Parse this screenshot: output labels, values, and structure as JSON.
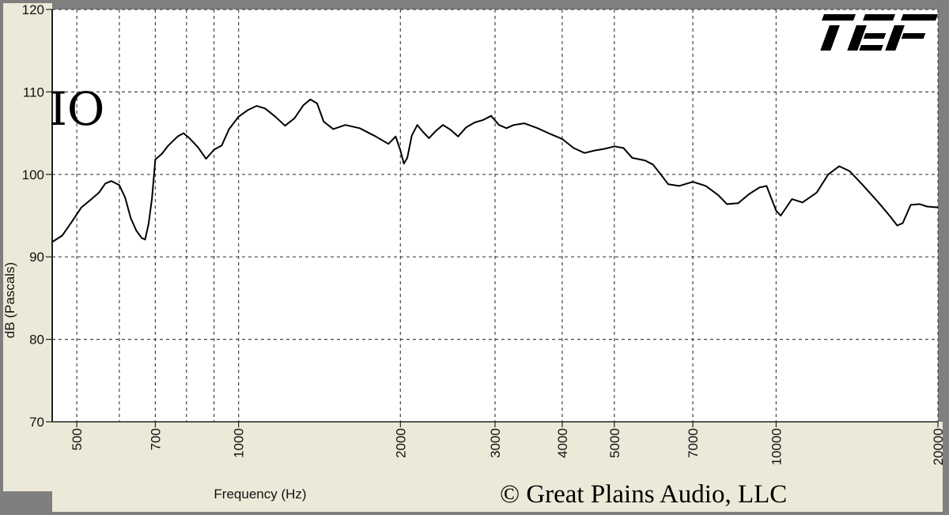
{
  "chart_data": {
    "type": "line",
    "title": "",
    "panel_label": "IO",
    "logo_text": "TEF",
    "copyright": "© Great Plains Audio, LLC",
    "xlabel": "Frequency (Hz)",
    "ylabel": "dB (Pascals)",
    "x_scale": "log",
    "xlim": [
      450,
      20000
    ],
    "ylim": [
      70,
      120
    ],
    "x_ticks": [
      500,
      700,
      1000,
      2000,
      3000,
      4000,
      5000,
      7000,
      10000,
      20000
    ],
    "x_minor_gridlines": [
      600,
      800,
      900
    ],
    "y_ticks": [
      70,
      80,
      90,
      100,
      110,
      120
    ],
    "grid": true,
    "colors": {
      "line": "#000000",
      "plot_bg": "#ffffff",
      "frame_bg": "#7f7f7f",
      "panel_bg": "#ece9d8",
      "grid": "#444444"
    },
    "series": [
      {
        "points": [
          [
            450,
            91.8
          ],
          [
            470,
            92.6
          ],
          [
            490,
            94.3
          ],
          [
            510,
            96.0
          ],
          [
            530,
            96.9
          ],
          [
            550,
            97.8
          ],
          [
            565,
            98.9
          ],
          [
            580,
            99.2
          ],
          [
            600,
            98.7
          ],
          [
            615,
            97.2
          ],
          [
            630,
            94.7
          ],
          [
            645,
            93.2
          ],
          [
            660,
            92.3
          ],
          [
            670,
            92.1
          ],
          [
            680,
            94.0
          ],
          [
            690,
            97.1
          ],
          [
            700,
            101.8
          ],
          [
            720,
            102.5
          ],
          [
            740,
            103.5
          ],
          [
            770,
            104.6
          ],
          [
            790,
            105.0
          ],
          [
            810,
            104.4
          ],
          [
            840,
            103.3
          ],
          [
            870,
            101.9
          ],
          [
            900,
            103.0
          ],
          [
            930,
            103.5
          ],
          [
            960,
            105.5
          ],
          [
            1000,
            107.0
          ],
          [
            1040,
            107.8
          ],
          [
            1080,
            108.3
          ],
          [
            1120,
            108.0
          ],
          [
            1170,
            107.0
          ],
          [
            1220,
            105.9
          ],
          [
            1270,
            106.8
          ],
          [
            1320,
            108.4
          ],
          [
            1360,
            109.1
          ],
          [
            1400,
            108.6
          ],
          [
            1440,
            106.4
          ],
          [
            1500,
            105.5
          ],
          [
            1580,
            106.0
          ],
          [
            1680,
            105.6
          ],
          [
            1800,
            104.6
          ],
          [
            1900,
            103.7
          ],
          [
            1960,
            104.6
          ],
          [
            2000,
            102.9
          ],
          [
            2030,
            101.3
          ],
          [
            2060,
            102.0
          ],
          [
            2100,
            104.7
          ],
          [
            2150,
            106.0
          ],
          [
            2200,
            105.2
          ],
          [
            2260,
            104.4
          ],
          [
            2330,
            105.3
          ],
          [
            2400,
            106.0
          ],
          [
            2480,
            105.4
          ],
          [
            2560,
            104.6
          ],
          [
            2650,
            105.7
          ],
          [
            2750,
            106.3
          ],
          [
            2850,
            106.6
          ],
          [
            2950,
            107.1
          ],
          [
            3050,
            106.0
          ],
          [
            3150,
            105.6
          ],
          [
            3250,
            106.0
          ],
          [
            3400,
            106.2
          ],
          [
            3600,
            105.6
          ],
          [
            3800,
            104.9
          ],
          [
            4000,
            104.3
          ],
          [
            4200,
            103.2
          ],
          [
            4400,
            102.6
          ],
          [
            4600,
            102.9
          ],
          [
            4800,
            103.1
          ],
          [
            5000,
            103.4
          ],
          [
            5200,
            103.2
          ],
          [
            5400,
            102.0
          ],
          [
            5700,
            101.7
          ],
          [
            5900,
            101.2
          ],
          [
            6100,
            100.0
          ],
          [
            6300,
            98.8
          ],
          [
            6600,
            98.6
          ],
          [
            7000,
            99.1
          ],
          [
            7400,
            98.6
          ],
          [
            7800,
            97.5
          ],
          [
            8100,
            96.4
          ],
          [
            8500,
            96.5
          ],
          [
            8900,
            97.6
          ],
          [
            9300,
            98.4
          ],
          [
            9600,
            98.6
          ],
          [
            10000,
            95.6
          ],
          [
            10200,
            95.0
          ],
          [
            10700,
            97.0
          ],
          [
            11200,
            96.6
          ],
          [
            11900,
            97.8
          ],
          [
            12500,
            100.0
          ],
          [
            13100,
            101.0
          ],
          [
            13700,
            100.4
          ],
          [
            14500,
            98.7
          ],
          [
            15500,
            96.6
          ],
          [
            16300,
            94.9
          ],
          [
            16800,
            93.8
          ],
          [
            17200,
            94.1
          ],
          [
            17800,
            96.3
          ],
          [
            18500,
            96.4
          ],
          [
            19100,
            96.1
          ],
          [
            20000,
            96.0
          ]
        ]
      }
    ]
  }
}
